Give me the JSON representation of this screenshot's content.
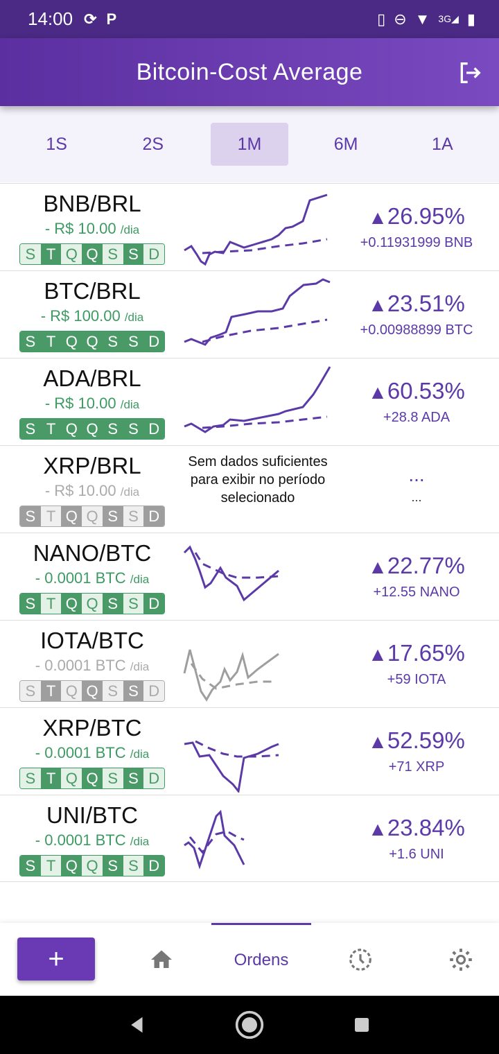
{
  "status_bar": {
    "time": "14:00",
    "left_icons": [
      "sync-icon",
      "parking-icon"
    ],
    "right_icons": [
      "vibrate-icon",
      "do-not-disturb-icon",
      "wifi-icon",
      "signal-3g-icon",
      "battery-charging-icon"
    ],
    "network": "3G"
  },
  "app_bar": {
    "title": "Bitcoin-Cost Average",
    "logout_icon": "logout-icon"
  },
  "periods": {
    "items": [
      "1S",
      "2S",
      "1M",
      "6M",
      "1A"
    ],
    "selected": "1M"
  },
  "colors": {
    "accent": "#5b3aa8",
    "green": "#4a9a68",
    "gray": "#9e9e9e"
  },
  "rows": [
    {
      "pair": "BNB/BRL",
      "amount": "- R$ 10.00",
      "per": "/dia",
      "active": true,
      "days": [
        "S",
        "T",
        "Q",
        "Q",
        "S",
        "S",
        "D"
      ],
      "days_on": [
        false,
        true,
        false,
        true,
        false,
        true,
        false
      ],
      "perf": "26.95%",
      "gain": "+0.11931999 BNB"
    },
    {
      "pair": "BTC/BRL",
      "amount": "- R$ 100.00",
      "per": "/dia",
      "active": true,
      "days": [
        "S",
        "T",
        "Q",
        "Q",
        "S",
        "S",
        "D"
      ],
      "days_on": [
        true,
        true,
        true,
        true,
        true,
        true,
        true
      ],
      "perf": "23.51%",
      "gain": "+0.00988899 BTC"
    },
    {
      "pair": "ADA/BRL",
      "amount": "- R$ 10.00",
      "per": "/dia",
      "active": true,
      "days": [
        "S",
        "T",
        "Q",
        "Q",
        "S",
        "S",
        "D"
      ],
      "days_on": [
        true,
        true,
        true,
        true,
        true,
        true,
        true
      ],
      "perf": "60.53%",
      "gain": "+28.8 ADA"
    },
    {
      "pair": "XRP/BRL",
      "amount": "- R$ 10.00",
      "per": "/dia",
      "active": false,
      "days": [
        "S",
        "T",
        "Q",
        "Q",
        "S",
        "S",
        "D"
      ],
      "days_on": [
        true,
        false,
        true,
        false,
        true,
        false,
        true
      ],
      "no_data": "Sem dados suficientes para exibir no período selecionado",
      "ellipsis": "...",
      "ellipsis_small": "..."
    },
    {
      "pair": "NANO/BTC",
      "amount": "- 0.0001 BTC",
      "per": "/dia",
      "active": true,
      "days": [
        "S",
        "T",
        "Q",
        "Q",
        "S",
        "S",
        "D"
      ],
      "days_on": [
        true,
        false,
        true,
        false,
        true,
        false,
        true
      ],
      "perf": "22.77%",
      "gain": "+12.55 NANO"
    },
    {
      "pair": "IOTA/BTC",
      "amount": "- 0.0001 BTC",
      "per": "/dia",
      "active": false,
      "days": [
        "S",
        "T",
        "Q",
        "Q",
        "S",
        "S",
        "D"
      ],
      "days_on": [
        false,
        true,
        false,
        true,
        false,
        true,
        false
      ],
      "perf": "17.65%",
      "gain": "+59 IOTA"
    },
    {
      "pair": "XRP/BTC",
      "amount": "- 0.0001 BTC",
      "per": "/dia",
      "active": true,
      "days": [
        "S",
        "T",
        "Q",
        "Q",
        "S",
        "S",
        "D"
      ],
      "days_on": [
        false,
        true,
        false,
        true,
        false,
        true,
        false
      ],
      "perf": "52.59%",
      "gain": "+71 XRP"
    },
    {
      "pair": "UNI/BTC",
      "amount": "- 0.0001 BTC",
      "per": "/dia",
      "active": true,
      "days": [
        "S",
        "T",
        "Q",
        "Q",
        "S",
        "S",
        "D"
      ],
      "days_on": [
        true,
        false,
        true,
        false,
        true,
        false,
        true
      ],
      "perf": "23.84%",
      "gain": "+1.6 UNI"
    }
  ],
  "bottom_nav": {
    "add_label": "+",
    "home_icon": "home-icon",
    "orders_label": "Ordens",
    "history_icon": "history-icon",
    "settings_icon": "settings-icon"
  },
  "system_nav": [
    "back-icon",
    "home-circle-icon",
    "recents-icon"
  ]
}
